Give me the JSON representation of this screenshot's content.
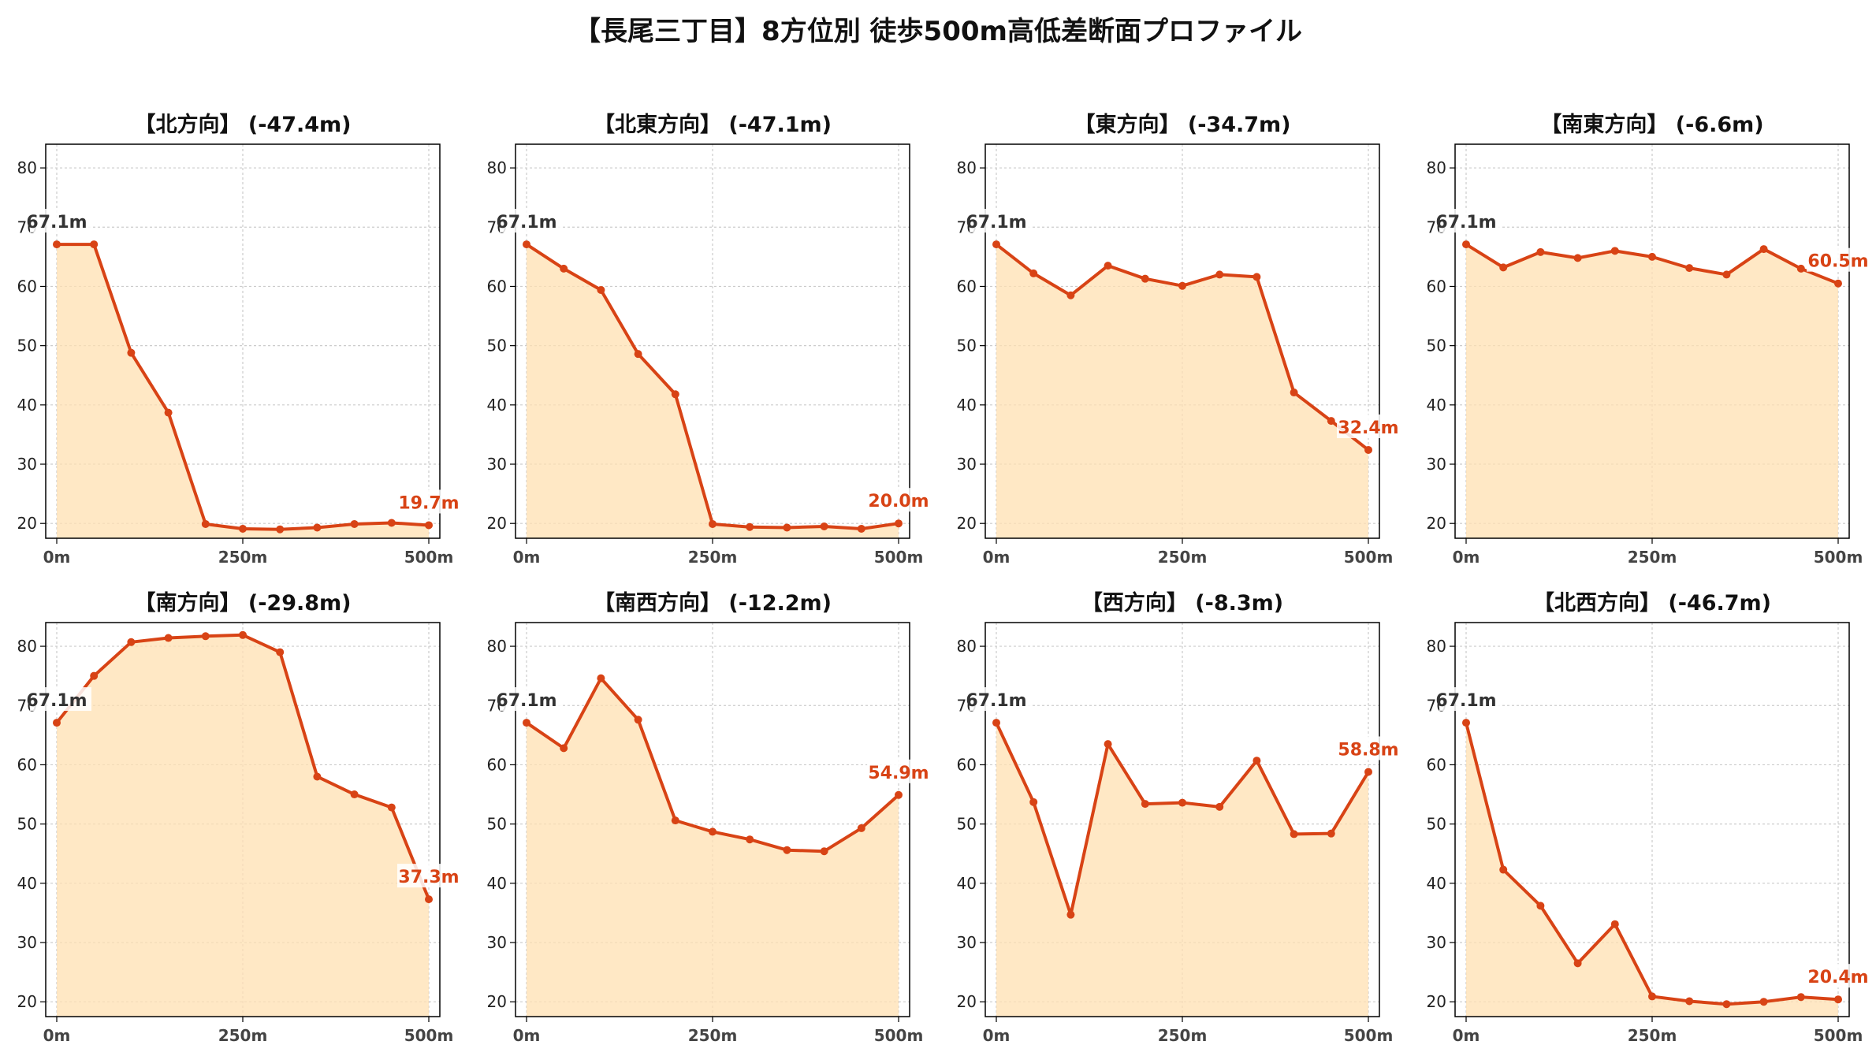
{
  "title": "【長尾三丁目】8方位別 徒歩500m高低差断面プロファイル",
  "colors": {
    "line": "#d84315",
    "fill": "#ffe0b2",
    "start_label": "#333333",
    "end_label": "#d84315",
    "grid": "#cccccc"
  },
  "chart_data": [
    {
      "type": "area",
      "title": "【北方向】 (-47.4m)",
      "x": [
        0,
        50,
        100,
        150,
        200,
        250,
        300,
        350,
        400,
        450,
        500
      ],
      "values": [
        67.1,
        67.1,
        48.8,
        38.7,
        19.9,
        19.1,
        19.0,
        19.3,
        19.9,
        20.1,
        19.7
      ],
      "xticks": [
        "0m",
        "250m",
        "500m"
      ],
      "yticks": [
        "20",
        "30",
        "40",
        "50",
        "60",
        "70",
        "80"
      ],
      "ylim": [
        17.5,
        84
      ],
      "start_label": "67.1m",
      "end_label": "19.7m"
    },
    {
      "type": "area",
      "title": "【北東方向】 (-47.1m)",
      "x": [
        0,
        50,
        100,
        150,
        200,
        250,
        300,
        350,
        400,
        450,
        500
      ],
      "values": [
        67.1,
        63.0,
        59.4,
        48.6,
        41.8,
        19.9,
        19.4,
        19.3,
        19.5,
        19.1,
        20.0
      ],
      "xticks": [
        "0m",
        "250m",
        "500m"
      ],
      "yticks": [
        "20",
        "30",
        "40",
        "50",
        "60",
        "70",
        "80"
      ],
      "ylim": [
        17.5,
        84
      ],
      "start_label": "67.1m",
      "end_label": "20.0m"
    },
    {
      "type": "area",
      "title": "【東方向】 (-34.7m)",
      "x": [
        0,
        50,
        100,
        150,
        200,
        250,
        300,
        350,
        400,
        450,
        500
      ],
      "values": [
        67.1,
        62.2,
        58.5,
        63.5,
        61.3,
        60.1,
        62.0,
        61.6,
        42.1,
        37.3,
        32.4
      ],
      "xticks": [
        "0m",
        "250m",
        "500m"
      ],
      "yticks": [
        "20",
        "30",
        "40",
        "50",
        "60",
        "70",
        "80"
      ],
      "ylim": [
        17.5,
        84
      ],
      "start_label": "67.1m",
      "end_label": "32.4m"
    },
    {
      "type": "area",
      "title": "【南東方向】 (-6.6m)",
      "x": [
        0,
        50,
        100,
        150,
        200,
        250,
        300,
        350,
        400,
        450,
        500
      ],
      "values": [
        67.1,
        63.2,
        65.8,
        64.8,
        66.0,
        65.0,
        63.1,
        62.0,
        66.3,
        63.0,
        60.5
      ],
      "xticks": [
        "0m",
        "250m",
        "500m"
      ],
      "yticks": [
        "20",
        "30",
        "40",
        "50",
        "60",
        "70",
        "80"
      ],
      "ylim": [
        17.5,
        84
      ],
      "start_label": "67.1m",
      "end_label": "60.5m"
    },
    {
      "type": "area",
      "title": "【南方向】 (-29.8m)",
      "x": [
        0,
        50,
        100,
        150,
        200,
        250,
        300,
        350,
        400,
        450,
        500
      ],
      "values": [
        67.1,
        75.0,
        80.7,
        81.4,
        81.7,
        81.9,
        79.0,
        58.0,
        55.0,
        52.8,
        37.3
      ],
      "xticks": [
        "0m",
        "250m",
        "500m"
      ],
      "yticks": [
        "20",
        "30",
        "40",
        "50",
        "60",
        "70",
        "80"
      ],
      "ylim": [
        17.5,
        84
      ],
      "start_label": "67.1m",
      "end_label": "37.3m"
    },
    {
      "type": "area",
      "title": "【南西方向】 (-12.2m)",
      "x": [
        0,
        50,
        100,
        150,
        200,
        250,
        300,
        350,
        400,
        450,
        500
      ],
      "values": [
        67.1,
        62.8,
        74.6,
        67.6,
        50.6,
        48.7,
        47.4,
        45.6,
        45.4,
        49.3,
        54.9
      ],
      "xticks": [
        "0m",
        "250m",
        "500m"
      ],
      "yticks": [
        "20",
        "30",
        "40",
        "50",
        "60",
        "70",
        "80"
      ],
      "ylim": [
        17.5,
        84
      ],
      "start_label": "67.1m",
      "end_label": "54.9m"
    },
    {
      "type": "area",
      "title": "【西方向】 (-8.3m)",
      "x": [
        0,
        50,
        100,
        150,
        200,
        250,
        300,
        350,
        400,
        450,
        500
      ],
      "values": [
        67.1,
        53.7,
        34.7,
        63.5,
        53.4,
        53.6,
        52.9,
        60.7,
        48.3,
        48.4,
        58.8
      ],
      "xticks": [
        "0m",
        "250m",
        "500m"
      ],
      "yticks": [
        "20",
        "30",
        "40",
        "50",
        "60",
        "70",
        "80"
      ],
      "ylim": [
        17.5,
        84
      ],
      "start_label": "67.1m",
      "end_label": "58.8m"
    },
    {
      "type": "area",
      "title": "【北西方向】 (-46.7m)",
      "x": [
        0,
        50,
        100,
        150,
        200,
        250,
        300,
        350,
        400,
        450,
        500
      ],
      "values": [
        67.1,
        42.3,
        36.2,
        26.5,
        33.1,
        20.9,
        20.1,
        19.6,
        20.0,
        20.8,
        20.4
      ],
      "xticks": [
        "0m",
        "250m",
        "500m"
      ],
      "yticks": [
        "20",
        "30",
        "40",
        "50",
        "60",
        "70",
        "80"
      ],
      "ylim": [
        17.5,
        84
      ],
      "start_label": "67.1m",
      "end_label": "20.4m"
    }
  ]
}
